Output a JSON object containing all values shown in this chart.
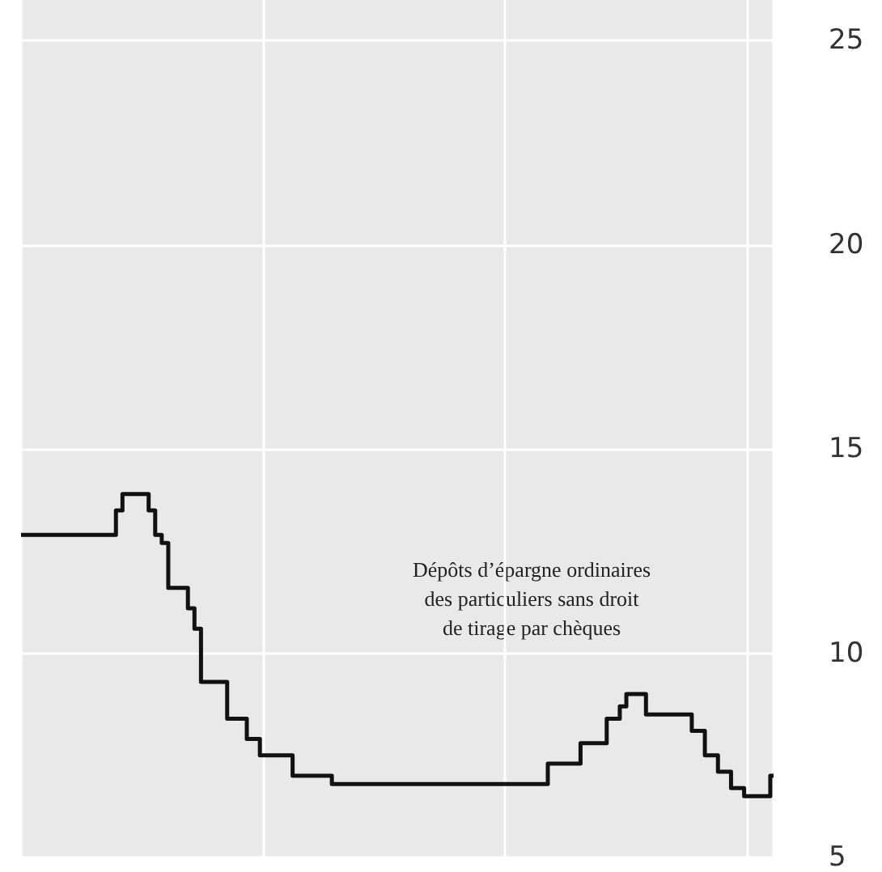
{
  "chart_data": {
    "type": "step",
    "categories": [
      null,
      null,
      null,
      null,
      null,
      null,
      null,
      null,
      null,
      null,
      null,
      null,
      null,
      null,
      null,
      null,
      null,
      null,
      null,
      null,
      null,
      null,
      null,
      null,
      null,
      null,
      null,
      null,
      null,
      null,
      null,
      null,
      null,
      null,
      null,
      null,
      null,
      null,
      null,
      null,
      null,
      null,
      null,
      null,
      null,
      null,
      null,
      null,
      null,
      null,
      null,
      null,
      null,
      null,
      null,
      null,
      null,
      null,
      null,
      null,
      null,
      null,
      null,
      null,
      null,
      null,
      null,
      null,
      null,
      null,
      null,
      null,
      null,
      null,
      null,
      null,
      null,
      null,
      null,
      null,
      null,
      null,
      null,
      null,
      null,
      null,
      null,
      null,
      null,
      null,
      null,
      null,
      null,
      null,
      null,
      null,
      null,
      null,
      null,
      null,
      null,
      null,
      null,
      null,
      null,
      null,
      null,
      null,
      null,
      null,
      null,
      null,
      null,
      null,
      null,
      null
    ],
    "series": [
      {
        "color": "#111111",
        "values": [
          12.9,
          12.9,
          12.9,
          12.9,
          12.9,
          12.9,
          12.9,
          12.9,
          12.9,
          12.9,
          12.9,
          12.9,
          12.9,
          12.9,
          12.9,
          13.5,
          13.9,
          13.9,
          13.9,
          13.9,
          13.5,
          12.9,
          12.7,
          11.6,
          11.6,
          11.6,
          11.1,
          10.6,
          9.3,
          9.3,
          9.3,
          9.3,
          8.4,
          8.4,
          8.4,
          7.9,
          7.9,
          7.5,
          7.5,
          7.5,
          7.5,
          7.5,
          7.0,
          7.0,
          7.0,
          7.0,
          7.0,
          7.0,
          6.8,
          6.8,
          6.8,
          6.8,
          6.8,
          6.8,
          6.8,
          6.8,
          6.8,
          6.8,
          6.8,
          6.8,
          6.8,
          6.8,
          6.8,
          6.8,
          6.8,
          6.8,
          6.8,
          6.8,
          6.8,
          6.8,
          6.8,
          6.8,
          6.8,
          6.8,
          6.8,
          6.8,
          6.8,
          6.8,
          6.8,
          6.8,
          6.8,
          7.3,
          7.3,
          7.3,
          7.3,
          7.3,
          7.8,
          7.8,
          7.8,
          7.8,
          8.4,
          8.4,
          8.7,
          9.0,
          9.0,
          9.0,
          8.5,
          8.5,
          8.5,
          8.5,
          8.5,
          8.5,
          8.5,
          8.1,
          8.1,
          7.5,
          7.5,
          7.1,
          7.1,
          6.7,
          6.7,
          6.5,
          6.5,
          6.5,
          6.5,
          7.0
        ]
      }
    ],
    "ylim": [
      5,
      26
    ],
    "yticks": [
      5,
      10,
      15,
      20,
      25
    ],
    "grid": true,
    "annotations": [
      "Dépôts d’épargne ordinaires\ndes particuliers sans droit\nde tirage par chèques"
    ]
  }
}
